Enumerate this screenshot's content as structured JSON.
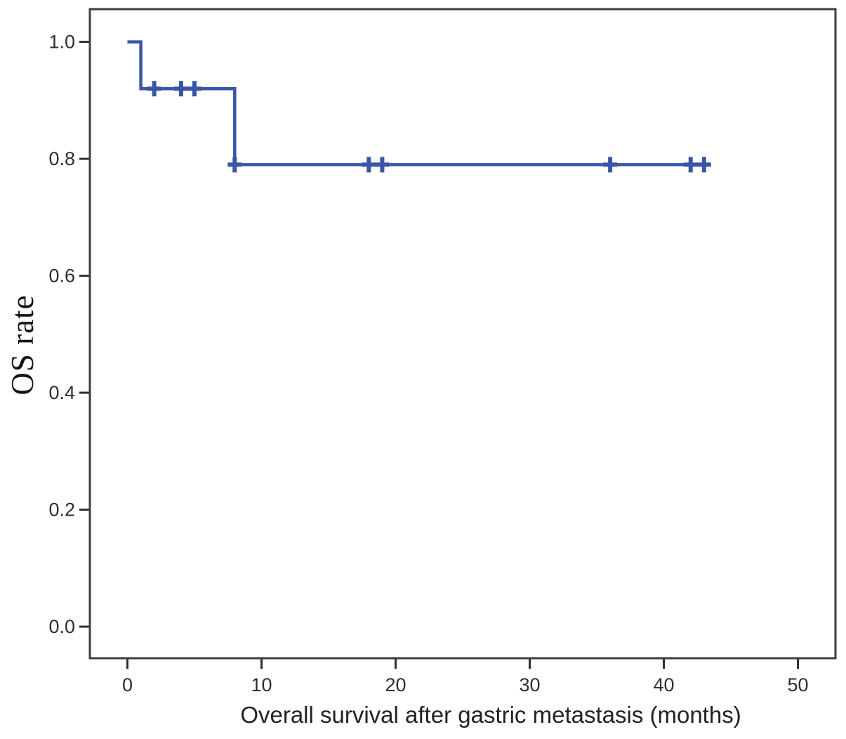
{
  "figure": {
    "background": "#ffffff",
    "frame_color": "#3d3d3d",
    "tick_color": "#2f2f2f",
    "axis_label_color": "#222222"
  },
  "chart_data": {
    "type": "line",
    "subtype": "kaplan-meier-step",
    "title": "",
    "xlabel": "Overall survival after gastric metastasis (months)",
    "ylabel": "OS rate",
    "xlim": [
      -2.8,
      52.8
    ],
    "ylim": [
      -0.054,
      1.056
    ],
    "x_ticks": [
      0,
      10,
      20,
      30,
      40,
      50
    ],
    "x_tick_labels": [
      "0",
      "10",
      "20",
      "30",
      "40",
      "50"
    ],
    "y_ticks": [
      0.0,
      0.2,
      0.4,
      0.6,
      0.8,
      1.0
    ],
    "y_tick_labels": [
      "0.0",
      "0.2",
      "0.4",
      "0.6",
      "0.8",
      "1.0"
    ],
    "grid": false,
    "legend": null,
    "series": [
      {
        "name": "Overall survival",
        "color": "#3a55a8",
        "line_width": 4.5,
        "step_points": [
          [
            0,
            1.0
          ],
          [
            1,
            1.0
          ],
          [
            1,
            0.92
          ],
          [
            8,
            0.92
          ],
          [
            8,
            0.79
          ],
          [
            43.5,
            0.79
          ]
        ],
        "censored_points": [
          [
            2,
            0.92
          ],
          [
            4,
            0.92
          ],
          [
            5,
            0.92
          ],
          [
            8,
            0.79
          ],
          [
            18,
            0.79
          ],
          [
            19,
            0.79
          ],
          [
            36,
            0.79
          ],
          [
            42,
            0.79
          ],
          [
            43,
            0.79
          ]
        ]
      }
    ]
  }
}
